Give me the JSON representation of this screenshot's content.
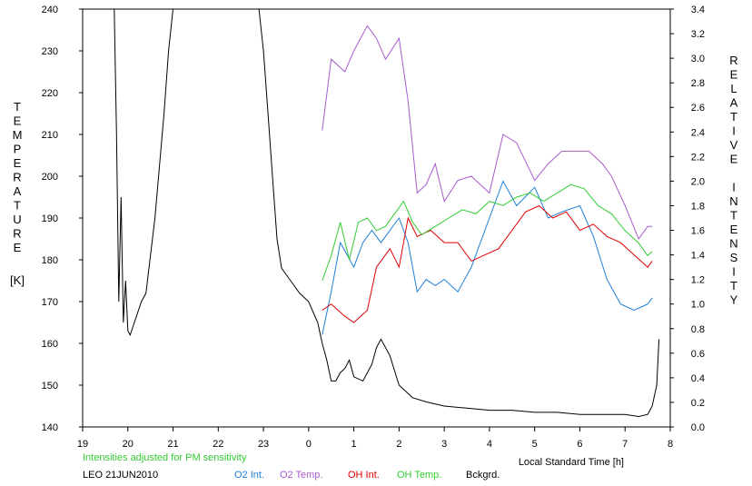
{
  "chart_data": {
    "type": "line",
    "left_axis": {
      "label_letters": [
        "T",
        "E",
        "M",
        "P",
        "E",
        "R",
        "A",
        "T",
        "U",
        "R",
        "E"
      ],
      "unit": "[K]",
      "ylim": [
        140,
        240
      ],
      "ticks": [
        140,
        150,
        160,
        170,
        180,
        190,
        200,
        210,
        220,
        230,
        240
      ]
    },
    "right_axis": {
      "label_letters": [
        "R",
        "E",
        "L",
        "A",
        "T",
        "I",
        "V",
        "E",
        "",
        "I",
        "N",
        "T",
        "E",
        "N",
        "S",
        "I",
        "T",
        "Y"
      ],
      "ylim": [
        0.0,
        3.4
      ],
      "ticks": [
        "0.0",
        "0.2",
        "0.4",
        "0.6",
        "0.8",
        "1.0",
        "1.2",
        "1.4",
        "1.6",
        "1.8",
        "2.0",
        "2.2",
        "2.4",
        "2.6",
        "2.8",
        "3.0",
        "3.2",
        "3.4"
      ]
    },
    "x_axis": {
      "label": "Local Standard Time [h]",
      "xlim": [
        19,
        32
      ],
      "tick_labels": [
        "19",
        "20",
        "21",
        "22",
        "23",
        "0",
        "1",
        "2",
        "3",
        "4",
        "5",
        "6",
        "7",
        "8"
      ]
    },
    "note": "Intensities adjusted for PM sensitivity",
    "site_date": "LEO 21JUN2010",
    "legend": [
      {
        "name": "O2 Int.",
        "color": "#1c7fd9"
      },
      {
        "name": "O2 Temp.",
        "color": "#a65ccc"
      },
      {
        "name": "OH Int.",
        "color": "#e00000"
      },
      {
        "name": "OH Temp.",
        "color": "#33cc33"
      },
      {
        "name": "Bckgrd.",
        "color": "#000000"
      }
    ],
    "series": [
      {
        "name": "O2 Temp.",
        "axis": "left",
        "color": "#a65ccc",
        "x": [
          24.3,
          24.5,
          24.8,
          25.0,
          25.3,
          25.5,
          25.7,
          26.0,
          26.2,
          26.4,
          26.6,
          26.8,
          27.0,
          27.3,
          27.6,
          28.0,
          28.3,
          28.6,
          29.0,
          29.3,
          29.6,
          29.9,
          30.2,
          30.5,
          30.7,
          31.0,
          31.3,
          31.5,
          31.6
        ],
        "y": [
          211,
          228,
          225,
          230,
          236,
          233,
          228,
          233,
          218,
          196,
          198,
          203,
          194,
          199,
          200,
          196,
          210,
          208,
          199,
          203,
          206,
          206,
          206,
          203,
          200,
          193,
          185,
          188,
          188
        ]
      },
      {
        "name": "O2 Int.",
        "axis": "right",
        "color": "#1c7fd9",
        "x": [
          24.3,
          24.5,
          24.7,
          25.0,
          25.2,
          25.4,
          25.6,
          25.8,
          26.0,
          26.2,
          26.4,
          26.6,
          26.8,
          27.0,
          27.3,
          27.6,
          28.0,
          28.3,
          28.6,
          29.0,
          29.3,
          29.6,
          30.0,
          30.3,
          30.6,
          30.9,
          31.2,
          31.5,
          31.6
        ],
        "y": [
          0.75,
          1.1,
          1.5,
          1.3,
          1.5,
          1.6,
          1.5,
          1.6,
          1.7,
          1.5,
          1.1,
          1.2,
          1.15,
          1.2,
          1.1,
          1.3,
          1.7,
          2.0,
          1.8,
          1.95,
          1.7,
          1.75,
          1.8,
          1.55,
          1.2,
          1.0,
          0.95,
          1.0,
          1.05
        ]
      },
      {
        "name": "OH Int.",
        "axis": "right",
        "color": "#e00000",
        "x": [
          24.3,
          24.5,
          24.8,
          25.0,
          25.3,
          25.5,
          25.8,
          26.0,
          26.2,
          26.4,
          26.7,
          27.0,
          27.3,
          27.6,
          27.9,
          28.2,
          28.5,
          28.8,
          29.1,
          29.4,
          29.7,
          30.0,
          30.3,
          30.6,
          30.9,
          31.2,
          31.5,
          31.6
        ],
        "y": [
          0.95,
          1.0,
          0.9,
          0.85,
          0.95,
          1.3,
          1.45,
          1.3,
          1.7,
          1.55,
          1.6,
          1.5,
          1.5,
          1.35,
          1.4,
          1.45,
          1.6,
          1.75,
          1.8,
          1.7,
          1.75,
          1.6,
          1.65,
          1.55,
          1.5,
          1.4,
          1.3,
          1.35
        ]
      },
      {
        "name": "OH Temp.",
        "axis": "left",
        "color": "#33cc33",
        "x": [
          24.3,
          24.5,
          24.7,
          24.9,
          25.1,
          25.3,
          25.5,
          25.7,
          25.9,
          26.1,
          26.3,
          26.5,
          26.8,
          27.1,
          27.4,
          27.7,
          28.0,
          28.3,
          28.6,
          28.9,
          29.2,
          29.5,
          29.8,
          30.1,
          30.4,
          30.7,
          31.0,
          31.3,
          31.5,
          31.6
        ],
        "y": [
          175,
          181,
          189,
          180,
          189,
          190,
          187,
          188,
          191,
          194,
          189,
          186,
          188,
          190,
          192,
          191,
          194,
          193,
          195,
          196,
          194,
          196,
          198,
          197,
          193,
          191,
          187,
          184,
          181,
          182
        ]
      },
      {
        "name": "Bckgrd.",
        "axis": "left",
        "color": "#000000",
        "x": [
          19.7,
          19.75,
          19.8,
          19.85,
          19.9,
          19.95,
          20.0,
          20.05,
          20.3,
          20.4,
          20.6,
          20.8,
          20.9,
          21.0,
          22.9,
          23.0,
          23.1,
          23.2,
          23.3,
          23.4,
          23.6,
          23.8,
          24.0,
          24.2,
          24.3,
          24.4,
          24.5,
          24.6,
          24.7,
          24.8,
          24.9,
          25.0,
          25.2,
          25.4,
          25.5,
          25.6,
          25.8,
          26.0,
          26.3,
          26.6,
          27.0,
          27.5,
          28.0,
          28.5,
          29.0,
          29.5,
          30.0,
          30.5,
          31.0,
          31.3,
          31.5,
          31.6,
          31.7,
          31.75
        ],
        "y": [
          240,
          210,
          170,
          195,
          165,
          175,
          163,
          162,
          170,
          172,
          190,
          215,
          230,
          240,
          240,
          230,
          215,
          200,
          185,
          178,
          175,
          172,
          170,
          165,
          160,
          156,
          151,
          151,
          153,
          154,
          156,
          152,
          151,
          155,
          159,
          161,
          157,
          150,
          147,
          146,
          145,
          144.5,
          144,
          144,
          143.5,
          143.5,
          143,
          143,
          143,
          142.5,
          143,
          145,
          150,
          161
        ]
      }
    ]
  }
}
